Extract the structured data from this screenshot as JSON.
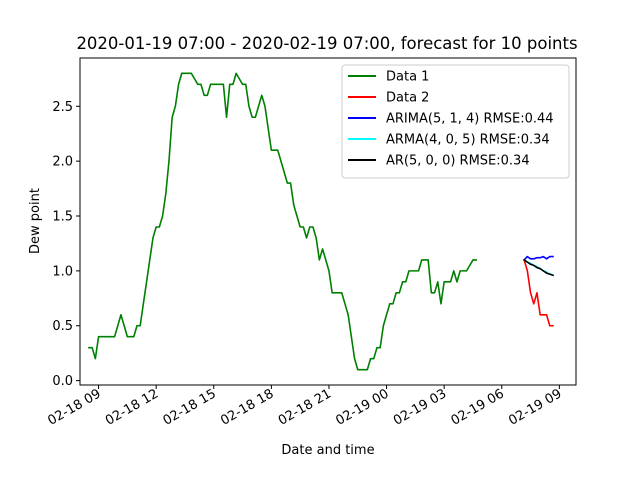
{
  "chart_data": {
    "type": "line",
    "title": "2020-01-19 07:00 - 2020-02-19 07:00, forecast for 10 points",
    "xlabel": "Date and time",
    "ylabel": "Dew point",
    "x_tick_labels": [
      "02-18 09",
      "02-18 12",
      "02-18 15",
      "02-18 18",
      "02-18 21",
      "02-19 00",
      "02-19 03",
      "02-19 06",
      "02-19 09"
    ],
    "y_tick_labels": [
      "0.0",
      "0.5",
      "1.0",
      "1.5",
      "2.0",
      "2.5"
    ],
    "xlim": [
      "2020-02-18 08:02",
      "2020-02-19 09:52"
    ],
    "ylim": [
      -0.04,
      2.94
    ],
    "legend_position": "upper right",
    "grid": false,
    "series": [
      {
        "name": "Data 1",
        "color": "#008000",
        "points": [
          [
            "2020-02-18 08:30",
            0.3
          ],
          [
            "2020-02-18 08:40",
            0.3
          ],
          [
            "2020-02-18 08:50",
            0.2
          ],
          [
            "2020-02-18 09:00",
            0.4
          ],
          [
            "2020-02-18 09:10",
            0.4
          ],
          [
            "2020-02-18 09:20",
            0.4
          ],
          [
            "2020-02-18 09:30",
            0.4
          ],
          [
            "2020-02-18 09:40",
            0.4
          ],
          [
            "2020-02-18 09:50",
            0.4
          ],
          [
            "2020-02-18 10:00",
            0.5
          ],
          [
            "2020-02-18 10:10",
            0.6
          ],
          [
            "2020-02-18 10:20",
            0.5
          ],
          [
            "2020-02-18 10:30",
            0.4
          ],
          [
            "2020-02-18 10:40",
            0.4
          ],
          [
            "2020-02-18 10:50",
            0.4
          ],
          [
            "2020-02-18 11:00",
            0.5
          ],
          [
            "2020-02-18 11:10",
            0.5
          ],
          [
            "2020-02-18 11:20",
            0.7
          ],
          [
            "2020-02-18 11:30",
            0.9
          ],
          [
            "2020-02-18 11:40",
            1.1
          ],
          [
            "2020-02-18 11:50",
            1.3
          ],
          [
            "2020-02-18 12:00",
            1.4
          ],
          [
            "2020-02-18 12:10",
            1.4
          ],
          [
            "2020-02-18 12:20",
            1.5
          ],
          [
            "2020-02-18 12:30",
            1.7
          ],
          [
            "2020-02-18 12:40",
            2.0
          ],
          [
            "2020-02-18 12:50",
            2.4
          ],
          [
            "2020-02-18 13:00",
            2.5
          ],
          [
            "2020-02-18 13:10",
            2.7
          ],
          [
            "2020-02-18 13:20",
            2.8
          ],
          [
            "2020-02-18 13:30",
            2.8
          ],
          [
            "2020-02-18 13:40",
            2.8
          ],
          [
            "2020-02-18 13:50",
            2.8
          ],
          [
            "2020-02-18 14:00",
            2.75
          ],
          [
            "2020-02-18 14:10",
            2.7
          ],
          [
            "2020-02-18 14:20",
            2.7
          ],
          [
            "2020-02-18 14:30",
            2.6
          ],
          [
            "2020-02-18 14:40",
            2.6
          ],
          [
            "2020-02-18 14:50",
            2.7
          ],
          [
            "2020-02-18 15:00",
            2.7
          ],
          [
            "2020-02-18 15:10",
            2.7
          ],
          [
            "2020-02-18 15:20",
            2.7
          ],
          [
            "2020-02-18 15:30",
            2.7
          ],
          [
            "2020-02-18 15:40",
            2.4
          ],
          [
            "2020-02-18 15:50",
            2.7
          ],
          [
            "2020-02-18 16:00",
            2.7
          ],
          [
            "2020-02-18 16:10",
            2.8
          ],
          [
            "2020-02-18 16:20",
            2.75
          ],
          [
            "2020-02-18 16:30",
            2.7
          ],
          [
            "2020-02-18 16:40",
            2.7
          ],
          [
            "2020-02-18 16:50",
            2.5
          ],
          [
            "2020-02-18 17:00",
            2.4
          ],
          [
            "2020-02-18 17:10",
            2.4
          ],
          [
            "2020-02-18 17:20",
            2.5
          ],
          [
            "2020-02-18 17:30",
            2.6
          ],
          [
            "2020-02-18 17:40",
            2.5
          ],
          [
            "2020-02-18 17:50",
            2.3
          ],
          [
            "2020-02-18 18:00",
            2.1
          ],
          [
            "2020-02-18 18:10",
            2.1
          ],
          [
            "2020-02-18 18:20",
            2.1
          ],
          [
            "2020-02-18 18:30",
            2.0
          ],
          [
            "2020-02-18 18:40",
            1.9
          ],
          [
            "2020-02-18 18:50",
            1.8
          ],
          [
            "2020-02-18 19:00",
            1.8
          ],
          [
            "2020-02-18 19:10",
            1.6
          ],
          [
            "2020-02-18 19:20",
            1.5
          ],
          [
            "2020-02-18 19:30",
            1.4
          ],
          [
            "2020-02-18 19:40",
            1.4
          ],
          [
            "2020-02-18 19:50",
            1.3
          ],
          [
            "2020-02-18 20:00",
            1.4
          ],
          [
            "2020-02-18 20:10",
            1.4
          ],
          [
            "2020-02-18 20:20",
            1.3
          ],
          [
            "2020-02-18 20:30",
            1.1
          ],
          [
            "2020-02-18 20:40",
            1.2
          ],
          [
            "2020-02-18 20:50",
            1.1
          ],
          [
            "2020-02-18 21:00",
            1.0
          ],
          [
            "2020-02-18 21:10",
            0.8
          ],
          [
            "2020-02-18 21:20",
            0.8
          ],
          [
            "2020-02-18 21:30",
            0.8
          ],
          [
            "2020-02-18 21:40",
            0.8
          ],
          [
            "2020-02-18 21:50",
            0.7
          ],
          [
            "2020-02-18 22:00",
            0.6
          ],
          [
            "2020-02-18 22:10",
            0.4
          ],
          [
            "2020-02-18 22:20",
            0.2
          ],
          [
            "2020-02-18 22:30",
            0.1
          ],
          [
            "2020-02-18 22:40",
            0.1
          ],
          [
            "2020-02-18 22:50",
            0.1
          ],
          [
            "2020-02-18 23:00",
            0.1
          ],
          [
            "2020-02-18 23:10",
            0.2
          ],
          [
            "2020-02-18 23:20",
            0.2
          ],
          [
            "2020-02-18 23:30",
            0.3
          ],
          [
            "2020-02-18 23:40",
            0.3
          ],
          [
            "2020-02-18 23:50",
            0.5
          ],
          [
            "2020-02-19 00:00",
            0.6
          ],
          [
            "2020-02-19 00:10",
            0.7
          ],
          [
            "2020-02-19 00:20",
            0.7
          ],
          [
            "2020-02-19 00:30",
            0.8
          ],
          [
            "2020-02-19 00:40",
            0.8
          ],
          [
            "2020-02-19 00:50",
            0.9
          ],
          [
            "2020-02-19 01:00",
            0.9
          ],
          [
            "2020-02-19 01:10",
            1.0
          ],
          [
            "2020-02-19 01:20",
            1.0
          ],
          [
            "2020-02-19 01:30",
            1.0
          ],
          [
            "2020-02-19 01:40",
            1.0
          ],
          [
            "2020-02-19 01:50",
            1.1
          ],
          [
            "2020-02-19 02:00",
            1.1
          ],
          [
            "2020-02-19 02:10",
            1.1
          ],
          [
            "2020-02-19 02:20",
            0.8
          ],
          [
            "2020-02-19 02:30",
            0.8
          ],
          [
            "2020-02-19 02:40",
            0.9
          ],
          [
            "2020-02-19 02:50",
            0.7
          ],
          [
            "2020-02-19 03:00",
            0.9
          ],
          [
            "2020-02-19 03:10",
            0.9
          ],
          [
            "2020-02-19 03:20",
            0.9
          ],
          [
            "2020-02-19 03:30",
            1.0
          ],
          [
            "2020-02-19 03:40",
            0.9
          ],
          [
            "2020-02-19 03:50",
            1.0
          ],
          [
            "2020-02-19 04:00",
            1.0
          ],
          [
            "2020-02-19 04:10",
            1.0
          ],
          [
            "2020-02-19 04:20",
            1.05
          ],
          [
            "2020-02-19 04:30",
            1.1
          ],
          [
            "2020-02-19 04:40",
            1.1
          ]
        ]
      },
      {
        "name": "Data 2",
        "color": "#ff0000",
        "points": [
          [
            "2020-02-19 07:10",
            1.1
          ],
          [
            "2020-02-19 07:20",
            1.0
          ],
          [
            "2020-02-19 07:30",
            0.8
          ],
          [
            "2020-02-19 07:40",
            0.7
          ],
          [
            "2020-02-19 07:50",
            0.8
          ],
          [
            "2020-02-19 08:00",
            0.6
          ],
          [
            "2020-02-19 08:10",
            0.6
          ],
          [
            "2020-02-19 08:20",
            0.6
          ],
          [
            "2020-02-19 08:30",
            0.5
          ],
          [
            "2020-02-19 08:40",
            0.5
          ]
        ]
      },
      {
        "name": "ARIMA(5, 1, 4) RMSE:0.44",
        "color": "#0000ff",
        "points": [
          [
            "2020-02-19 07:10",
            1.1
          ],
          [
            "2020-02-19 07:20",
            1.13
          ],
          [
            "2020-02-19 07:30",
            1.11
          ],
          [
            "2020-02-19 07:40",
            1.11
          ],
          [
            "2020-02-19 07:50",
            1.12
          ],
          [
            "2020-02-19 08:00",
            1.12
          ],
          [
            "2020-02-19 08:10",
            1.13
          ],
          [
            "2020-02-19 08:20",
            1.11
          ],
          [
            "2020-02-19 08:30",
            1.13
          ],
          [
            "2020-02-19 08:40",
            1.13
          ]
        ]
      },
      {
        "name": "ARMA(4, 0, 5) RMSE:0.34",
        "color": "#00ffff",
        "points": [
          [
            "2020-02-19 07:10",
            1.1
          ],
          [
            "2020-02-19 07:20",
            1.08
          ],
          [
            "2020-02-19 07:30",
            1.07
          ],
          [
            "2020-02-19 07:40",
            1.05
          ],
          [
            "2020-02-19 07:50",
            1.04
          ],
          [
            "2020-02-19 08:00",
            1.02
          ],
          [
            "2020-02-19 08:10",
            1.0
          ],
          [
            "2020-02-19 08:20",
            0.99
          ],
          [
            "2020-02-19 08:30",
            0.97
          ],
          [
            "2020-02-19 08:40",
            0.96
          ]
        ]
      },
      {
        "name": "AR(5, 0, 0) RMSE:0.34",
        "color": "#000000",
        "points": [
          [
            "2020-02-19 07:10",
            1.1
          ],
          [
            "2020-02-19 07:20",
            1.08
          ],
          [
            "2020-02-19 07:30",
            1.06
          ],
          [
            "2020-02-19 07:40",
            1.05
          ],
          [
            "2020-02-19 07:50",
            1.03
          ],
          [
            "2020-02-19 08:00",
            1.02
          ],
          [
            "2020-02-19 08:10",
            1.0
          ],
          [
            "2020-02-19 08:20",
            0.98
          ],
          [
            "2020-02-19 08:30",
            0.97
          ],
          [
            "2020-02-19 08:40",
            0.96
          ]
        ]
      }
    ]
  }
}
